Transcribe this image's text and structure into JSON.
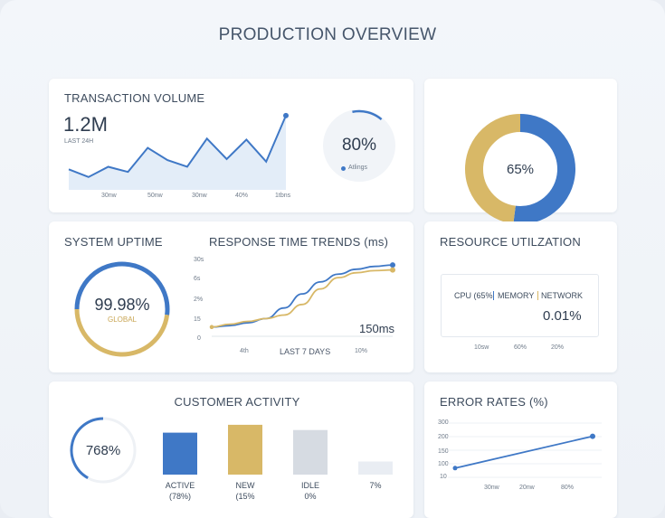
{
  "page": {
    "title": "PRODUCTION OVERVIEW"
  },
  "colors": {
    "blue": "#3f78c6",
    "gold": "#d8b867",
    "grey": "#d6dbe2",
    "light": "#e9edf3",
    "area": "#dce8f6"
  },
  "transaction": {
    "title": "TRANSACTION VOLUME",
    "value": "1.2M",
    "subtitle": "LAST 24H",
    "x_ticks": [
      "30nw",
      "50nw",
      "30nw",
      "40%",
      "1tbns"
    ],
    "chart_data": {
      "type": "area",
      "values": [
        40,
        25,
        45,
        35,
        82,
        58,
        45,
        100,
        60,
        98,
        55,
        145
      ],
      "ylim": [
        0,
        150
      ]
    },
    "gauge": {
      "value": "80%",
      "legend": "Atlings",
      "fraction": 0.8
    }
  },
  "uptime": {
    "title": "SYSTEM UPTIME",
    "value": "99.98%",
    "sub": "GLOBAL",
    "segments": [
      0.52,
      0.48
    ]
  },
  "response": {
    "title": "RESPONSE TIME TRENDS (ms)",
    "y_ticks": [
      "30s",
      "6s",
      "2%",
      "15",
      "0"
    ],
    "x_ticks": [
      "4th",
      "LAST 7 DAYS",
      "10%"
    ],
    "annotation": "150ms",
    "chart_data": {
      "type": "line",
      "ylim": [
        0,
        100
      ],
      "series": [
        {
          "color": "blue",
          "values": [
            8,
            10,
            14,
            20,
            35,
            55,
            72,
            83,
            90,
            94,
            96
          ]
        },
        {
          "color": "gold",
          "values": [
            8,
            12,
            16,
            20,
            25,
            40,
            62,
            78,
            85,
            88,
            89
          ]
        }
      ]
    }
  },
  "donut": {
    "value": "65%",
    "segments": [
      0.52,
      0.48
    ]
  },
  "resource": {
    "title": "RESOURCE UTILZATION",
    "legend": [
      "CPU (65%",
      "MEMORY",
      "NETWORK"
    ],
    "value": "0.01%",
    "x_ticks": [
      "10sw",
      "60%",
      "20%"
    ]
  },
  "customer": {
    "title": "CUSTOMER ACTIVITY",
    "gauge": {
      "value": "768%",
      "fraction": 0.42
    },
    "chart_data": {
      "type": "bar",
      "categories": [
        "ACTIVE",
        "NEW",
        "IDLE",
        "7%"
      ],
      "sublabels": [
        "(78%)",
        "(15%",
        "0%",
        ""
      ],
      "values": [
        48,
        57,
        51,
        15
      ],
      "colors": [
        "blue",
        "gold",
        "grey",
        "light"
      ],
      "ylim": [
        0,
        60
      ]
    }
  },
  "errors": {
    "title": "ERROR RATES (%)",
    "y_ticks": [
      "300",
      "200",
      "150",
      "100",
      "10"
    ],
    "x_ticks": [
      "30nw",
      "20nw",
      "80%"
    ],
    "chart_data": {
      "type": "line",
      "values": [
        10,
        170
      ],
      "ylim": [
        0,
        300
      ]
    }
  }
}
